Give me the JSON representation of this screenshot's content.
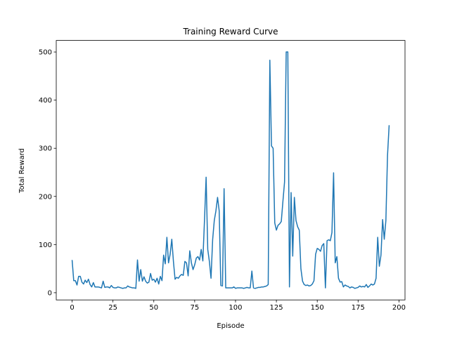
{
  "chart_data": {
    "type": "line",
    "title": "Training Reward Curve",
    "x_label": "Episode",
    "y_label": "Total Reward",
    "color": "#1f77b4",
    "x": [
      0,
      1,
      2,
      3,
      4,
      5,
      6,
      7,
      8,
      9,
      10,
      11,
      12,
      13,
      14,
      15,
      16,
      17,
      18,
      19,
      20,
      21,
      22,
      23,
      24,
      25,
      26,
      27,
      28,
      29,
      30,
      31,
      32,
      33,
      34,
      35,
      36,
      37,
      38,
      39,
      40,
      41,
      42,
      43,
      44,
      45,
      46,
      47,
      48,
      49,
      50,
      51,
      52,
      53,
      54,
      55,
      56,
      57,
      58,
      59,
      60,
      61,
      62,
      63,
      64,
      65,
      66,
      67,
      68,
      69,
      70,
      71,
      72,
      73,
      74,
      75,
      76,
      77,
      78,
      79,
      80,
      81,
      82,
      83,
      84,
      85,
      86,
      87,
      88,
      89,
      90,
      91,
      92,
      93,
      94,
      95,
      96,
      97,
      98,
      99,
      100,
      101,
      102,
      103,
      104,
      105,
      106,
      107,
      108,
      109,
      110,
      111,
      112,
      113,
      114,
      115,
      116,
      117,
      118,
      119,
      120,
      121,
      122,
      123,
      124,
      125,
      126,
      127,
      128,
      129,
      130,
      131,
      132,
      133,
      134,
      135,
      136,
      137,
      138,
      139,
      140,
      141,
      142,
      143,
      144,
      145,
      146,
      147,
      148,
      149,
      150,
      151,
      152,
      153,
      154,
      155,
      156,
      157,
      158,
      159,
      160,
      161,
      162,
      163,
      164,
      165,
      166,
      167,
      168,
      169,
      170,
      171,
      172,
      173,
      174,
      175,
      176,
      177,
      178,
      179,
      180,
      181,
      182,
      183,
      184,
      185,
      186,
      187,
      188,
      189,
      190,
      191,
      192,
      193,
      194
    ],
    "values": [
      68,
      25,
      25,
      16,
      34,
      34,
      22,
      18,
      26,
      21,
      28,
      17,
      12,
      21,
      12,
      12,
      12,
      11,
      10,
      24,
      11,
      12,
      12,
      10,
      15,
      11,
      10,
      10,
      12,
      11,
      10,
      9,
      10,
      10,
      14,
      12,
      11,
      10,
      10,
      9,
      68,
      24,
      48,
      24,
      33,
      24,
      20,
      22,
      40,
      26,
      28,
      22,
      30,
      18,
      34,
      25,
      78,
      60,
      115,
      62,
      80,
      111,
      65,
      28,
      32,
      30,
      35,
      38,
      36,
      65,
      62,
      35,
      87,
      62,
      48,
      58,
      72,
      75,
      68,
      90,
      66,
      150,
      240,
      90,
      65,
      30,
      110,
      150,
      170,
      198,
      170,
      15,
      14,
      216,
      10,
      10,
      10,
      10,
      10,
      12,
      9,
      10,
      10,
      10,
      10,
      9,
      10,
      11,
      10,
      10,
      45,
      10,
      9,
      10,
      11,
      11,
      12,
      12,
      13,
      14,
      17,
      483,
      305,
      300,
      145,
      130,
      140,
      143,
      148,
      190,
      230,
      500,
      500,
      12,
      208,
      76,
      198,
      150,
      137,
      130,
      50,
      24,
      17,
      15,
      16,
      14,
      15,
      18,
      25,
      80,
      92,
      90,
      86,
      98,
      102,
      10,
      108,
      110,
      108,
      125,
      249,
      62,
      75,
      30,
      22,
      23,
      12,
      16,
      14,
      13,
      10,
      12,
      11,
      9,
      10,
      11,
      14,
      12,
      13,
      12,
      17,
      11,
      14,
      18,
      16,
      18,
      30,
      115,
      55,
      78,
      152,
      111,
      150,
      285,
      348
    ],
    "xlim": [
      -9.7,
      203.7
    ],
    "ylim": [
      -15,
      524
    ],
    "xticks": [
      0,
      25,
      50,
      75,
      100,
      125,
      150,
      175,
      200
    ],
    "yticks": [
      0,
      100,
      200,
      300,
      400,
      500
    ]
  }
}
